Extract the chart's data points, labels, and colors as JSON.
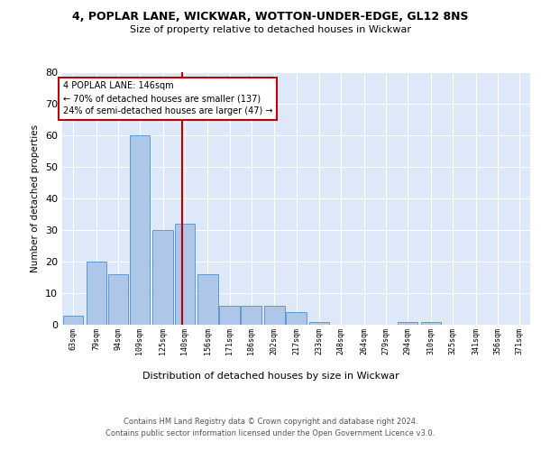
{
  "title1": "4, POPLAR LANE, WICKWAR, WOTTON-UNDER-EDGE, GL12 8NS",
  "title2": "Size of property relative to detached houses in Wickwar",
  "xlabel": "Distribution of detached houses by size in Wickwar",
  "ylabel": "Number of detached properties",
  "bins": [
    63,
    79,
    94,
    109,
    125,
    140,
    156,
    171,
    186,
    202,
    217,
    233,
    248,
    264,
    279,
    294,
    310,
    325,
    341,
    356,
    371
  ],
  "counts": [
    3,
    20,
    16,
    60,
    30,
    32,
    16,
    6,
    6,
    6,
    4,
    1,
    0,
    0,
    0,
    1,
    1,
    0,
    0,
    0,
    0
  ],
  "bar_color": "#aec6e8",
  "bar_edge_color": "#5b9bd5",
  "vline_x": 146,
  "vline_color": "#c00000",
  "annotation_text": "4 POPLAR LANE: 146sqm\n← 70% of detached houses are smaller (137)\n24% of semi-detached houses are larger (47) →",
  "annotation_box_color": "#c00000",
  "ylim": [
    0,
    80
  ],
  "yticks": [
    0,
    10,
    20,
    30,
    40,
    50,
    60,
    70,
    80
  ],
  "footer1": "Contains HM Land Registry data © Crown copyright and database right 2024.",
  "footer2": "Contains public sector information licensed under the Open Government Licence v3.0.",
  "bin_width": 15,
  "background_color": "#dde8f8",
  "grid_color": "#ffffff"
}
